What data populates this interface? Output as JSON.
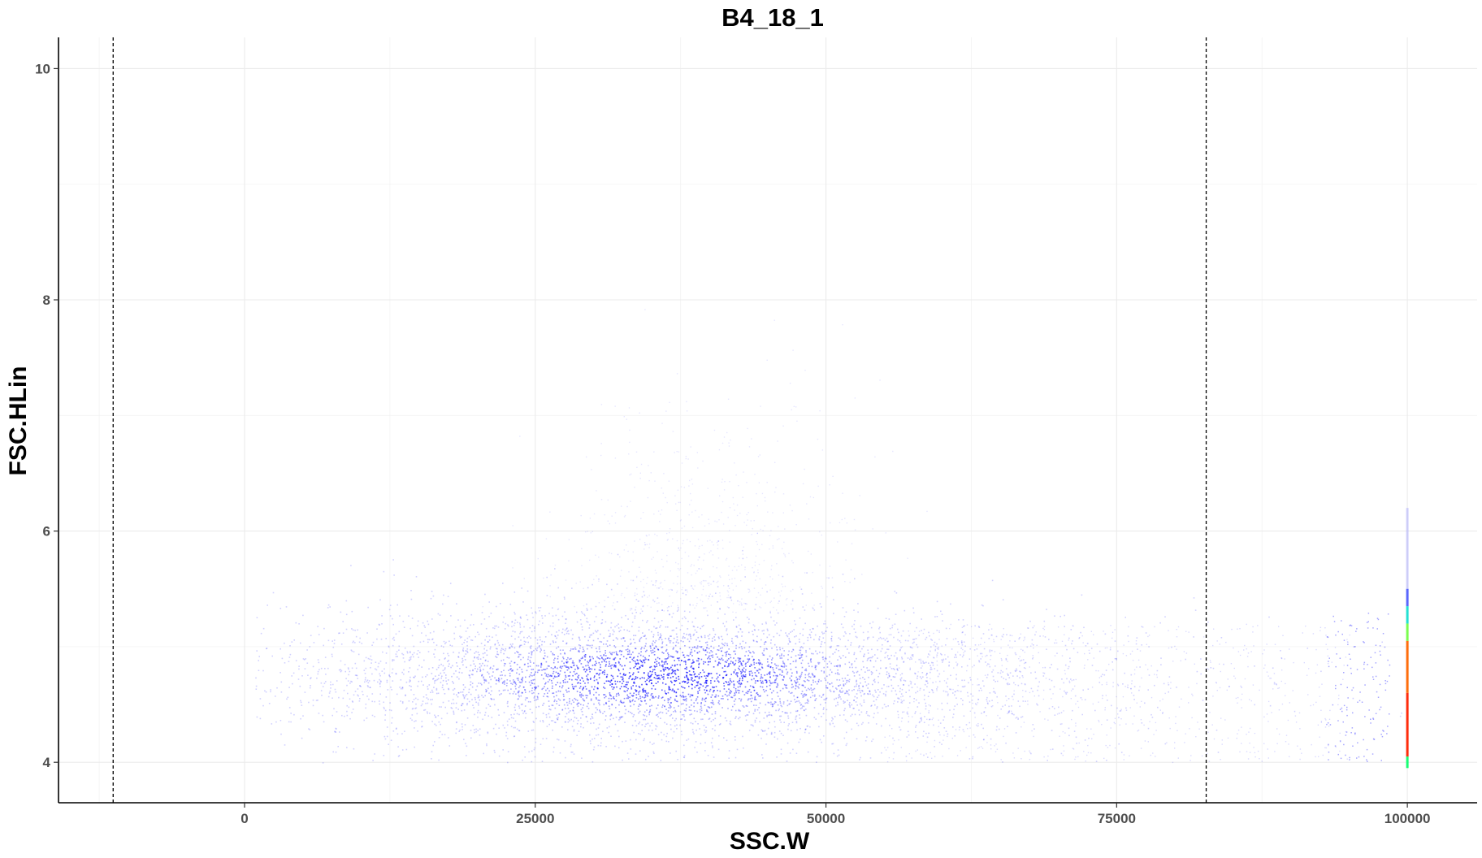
{
  "chart_data": {
    "type": "scatter",
    "title": "B4_18_1",
    "xlabel": "SSC.W",
    "ylabel": "FSC.HLin",
    "xlim": [
      -16000,
      106000
    ],
    "ylim": [
      3.65,
      10.27
    ],
    "x_ticks": [
      0,
      25000,
      50000,
      75000,
      100000
    ],
    "x_tick_labels": [
      "0",
      "25000",
      "50000",
      "75000",
      "100000"
    ],
    "y_ticks": [
      4,
      6,
      8,
      10
    ],
    "y_tick_labels": [
      "4",
      "6",
      "8",
      "10"
    ],
    "grid": true,
    "legend": "none",
    "gate_lines_x": [
      -11300,
      82700
    ],
    "point_color_low": "#0000ff",
    "point_color_high": "#ff0000",
    "clusters": [
      {
        "name": "main-population",
        "x_center": 36000,
        "y_center": 4.75,
        "x_spread": 19000,
        "y_spread": 0.3,
        "density": "high"
      },
      {
        "name": "upper-tail",
        "x_center": 40000,
        "y_center": 6.2,
        "x_spread": 6000,
        "y_spread": 0.8,
        "density": "low"
      },
      {
        "name": "saturated-edge",
        "x": 100000,
        "y_range": [
          3.95,
          6.2
        ],
        "density": "very-high"
      }
    ]
  }
}
